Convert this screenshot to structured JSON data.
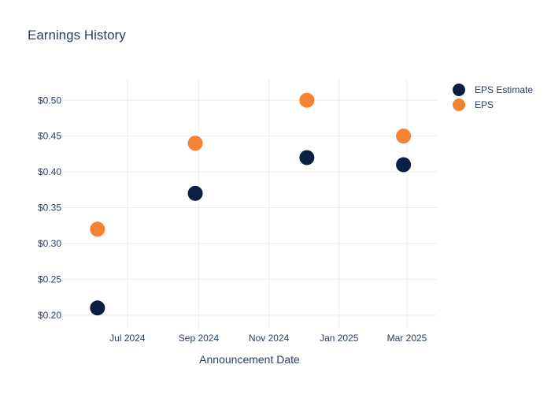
{
  "chart_data": {
    "type": "scatter",
    "title": "Earnings History",
    "xlabel": "Announcement Date",
    "ylabel": "",
    "x_tick_labels": [
      "Jul 2024",
      "Sep 2024",
      "Nov 2024",
      "Jan 2025",
      "Mar 2025"
    ],
    "x_ticks": [
      "2024-07-01",
      "2024-09-01",
      "2024-11-01",
      "2025-01-01",
      "2025-03-01"
    ],
    "xlim": [
      "2024-05-06",
      "2025-03-27"
    ],
    "y_tick_labels": [
      "$0.20",
      "$0.25",
      "$0.30",
      "$0.35",
      "$0.40",
      "$0.45",
      "$0.50"
    ],
    "y_ticks": [
      0.2,
      0.25,
      0.3,
      0.35,
      0.4,
      0.45,
      0.5
    ],
    "ylim": [
      0.18,
      0.53
    ],
    "grid": true,
    "legend_position": "top-right",
    "series": [
      {
        "name": "EPS Estimate",
        "color": "#0b1f42",
        "points": [
          {
            "x": "2024-06-05",
            "y": 0.21
          },
          {
            "x": "2024-08-29",
            "y": 0.37
          },
          {
            "x": "2024-12-04",
            "y": 0.42
          },
          {
            "x": "2025-02-26",
            "y": 0.41
          }
        ]
      },
      {
        "name": "EPS",
        "color": "#f58233",
        "points": [
          {
            "x": "2024-06-05",
            "y": 0.32
          },
          {
            "x": "2024-08-29",
            "y": 0.44
          },
          {
            "x": "2024-12-04",
            "y": 0.5
          },
          {
            "x": "2025-02-26",
            "y": 0.45
          }
        ]
      }
    ]
  }
}
